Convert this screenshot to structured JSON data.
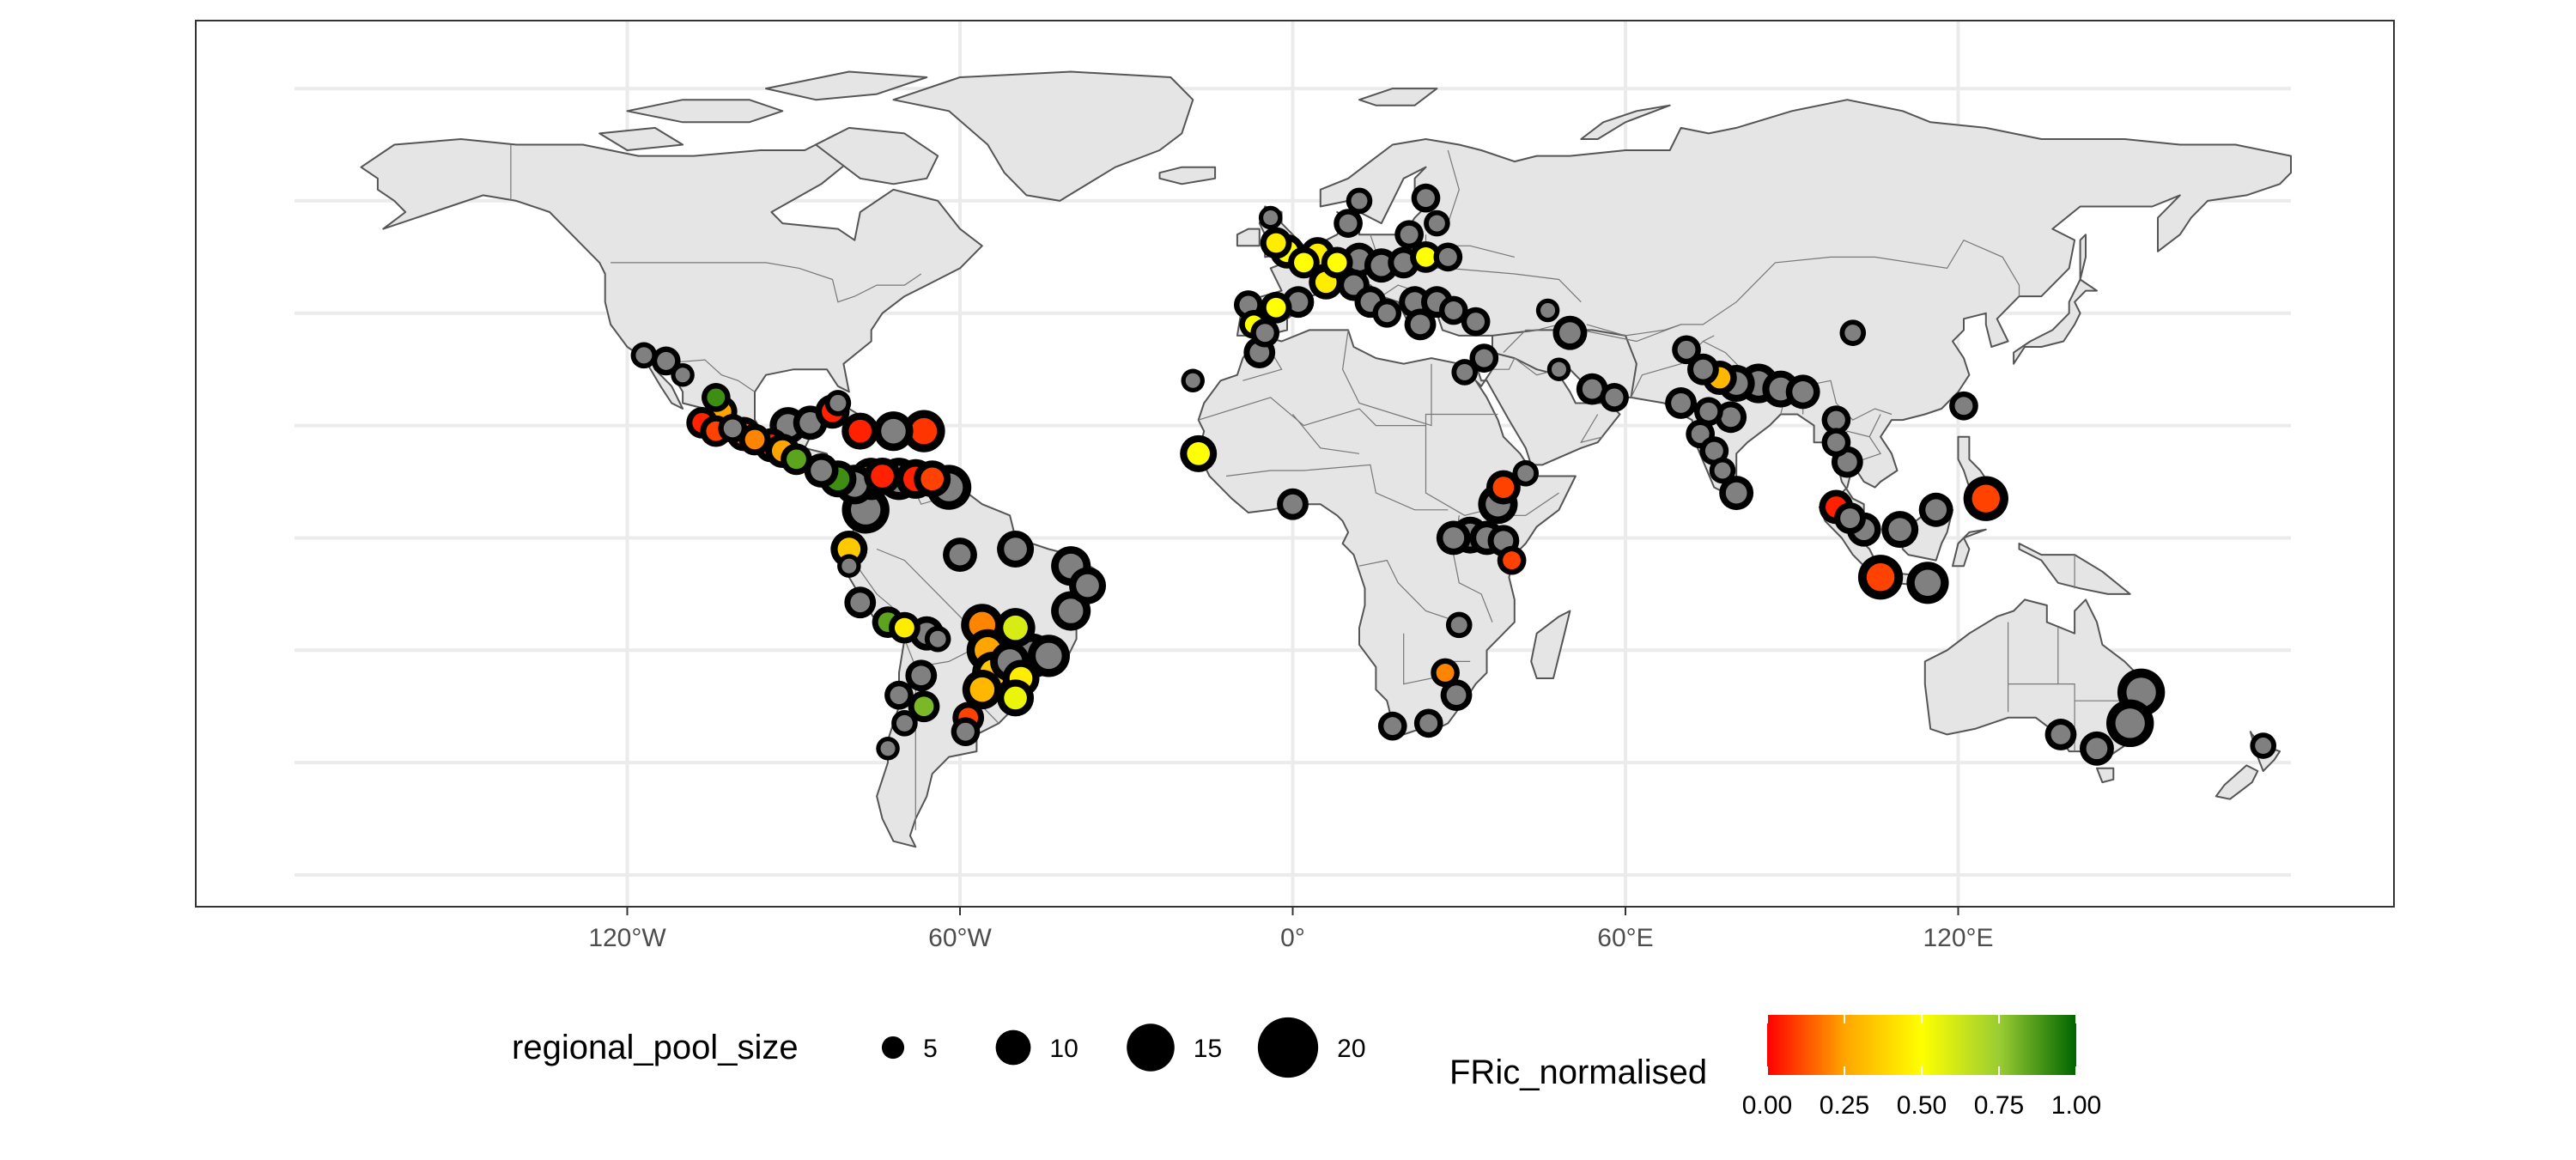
{
  "map": {
    "lon_range": [
      -180,
      180
    ],
    "lat_range": [
      -60,
      90
    ],
    "graticule_lons": [
      -120,
      -60,
      0,
      60,
      120
    ],
    "graticule_lats": [
      -60,
      -40,
      -20,
      0,
      20,
      40,
      60,
      80
    ],
    "x_tick_labels": [
      "120°W",
      "60°W",
      "0°",
      "60°E",
      "120°E"
    ],
    "grid": true,
    "land_color": "#e5e5e5",
    "border_color": "#555555",
    "gridline_color": "#ebebeb",
    "missing_value_color": "#808080",
    "outline_color": "#000000"
  },
  "legend": {
    "size": {
      "title": "regional_pool_size",
      "values": [
        5,
        10,
        15,
        20
      ],
      "labels": [
        "5",
        "10",
        "15",
        "20"
      ]
    },
    "color": {
      "title": "FRic_normalised",
      "stops": [
        "#ff0000",
        "#ffa500",
        "#ffff00",
        "#9acd32",
        "#006400"
      ],
      "labels": [
        "0.00",
        "0.25",
        "0.50",
        "0.75",
        "1.00"
      ],
      "range": [
        0,
        1
      ]
    },
    "placement": "bottom"
  },
  "sites": [
    {
      "lon": -117,
      "lat": 32.5,
      "size": 6,
      "fric": null
    },
    {
      "lon": -113,
      "lat": 31.5,
      "size": 7,
      "fric": null
    },
    {
      "lon": -110,
      "lat": 29,
      "size": 5,
      "fric": null
    },
    {
      "lon": -104,
      "lat": 25,
      "size": 7,
      "fric": 0.9
    },
    {
      "lon": -103,
      "lat": 22.5,
      "size": 8,
      "fric": 0.25
    },
    {
      "lon": -106.5,
      "lat": 20.5,
      "size": 8,
      "fric": 0.05
    },
    {
      "lon": -104,
      "lat": 19,
      "size": 8,
      "fric": 0.1
    },
    {
      "lon": -101,
      "lat": 19.5,
      "size": 7,
      "fric": null
    },
    {
      "lon": -99,
      "lat": 18.5,
      "size": 9,
      "fric": 0.15
    },
    {
      "lon": -97,
      "lat": 17.5,
      "size": 8,
      "fric": 0.2
    },
    {
      "lon": -94,
      "lat": 16.5,
      "size": 9,
      "fric": 0.05
    },
    {
      "lon": -92,
      "lat": 15.5,
      "size": 9,
      "fric": 0.25
    },
    {
      "lon": -89.5,
      "lat": 14,
      "size": 8,
      "fric": 0.85
    },
    {
      "lon": -91,
      "lat": 20,
      "size": 10,
      "fric": null
    },
    {
      "lon": -87,
      "lat": 20.5,
      "size": 9,
      "fric": null
    },
    {
      "lon": -83,
      "lat": 22.5,
      "size": 9,
      "fric": 0.05
    },
    {
      "lon": -82,
      "lat": 24,
      "size": 6,
      "fric": null
    },
    {
      "lon": -78,
      "lat": 19,
      "size": 10,
      "fric": 0.05
    },
    {
      "lon": -72,
      "lat": 19,
      "size": 11,
      "fric": null
    },
    {
      "lon": -66.5,
      "lat": 19,
      "size": 12,
      "fric": 0.08
    },
    {
      "lon": -85,
      "lat": 12,
      "size": 9,
      "fric": null
    },
    {
      "lon": -82,
      "lat": 10.5,
      "size": 10,
      "fric": 0.9
    },
    {
      "lon": -79,
      "lat": 9.5,
      "size": 11,
      "fric": null
    },
    {
      "lon": -76,
      "lat": 10.5,
      "size": 12,
      "fric": 0.3
    },
    {
      "lon": -74,
      "lat": 11,
      "size": 10,
      "fric": 0.05
    },
    {
      "lon": -71,
      "lat": 10.5,
      "size": 12,
      "fric": null
    },
    {
      "lon": -68,
      "lat": 10.5,
      "size": 11,
      "fric": 0.05
    },
    {
      "lon": -65,
      "lat": 10.5,
      "size": 10,
      "fric": 0.1
    },
    {
      "lon": -62,
      "lat": 9,
      "size": 13,
      "fric": null
    },
    {
      "lon": -77,
      "lat": 5,
      "size": 14,
      "fric": null
    },
    {
      "lon": -80,
      "lat": -2,
      "size": 10,
      "fric": 0.35
    },
    {
      "lon": -80,
      "lat": -5,
      "size": 5,
      "fric": null
    },
    {
      "lon": -78,
      "lat": -11.5,
      "size": 8,
      "fric": null
    },
    {
      "lon": -60,
      "lat": -3,
      "size": 9,
      "fric": null
    },
    {
      "lon": -50,
      "lat": -2,
      "size": 10,
      "fric": null
    },
    {
      "lon": -40,
      "lat": -5,
      "size": 11,
      "fric": null
    },
    {
      "lon": -37,
      "lat": -8.5,
      "size": 10,
      "fric": null
    },
    {
      "lon": -40,
      "lat": -13,
      "size": 11,
      "fric": null
    },
    {
      "lon": -73,
      "lat": -15,
      "size": 8,
      "fric": 0.85
    },
    {
      "lon": -70,
      "lat": -16,
      "size": 8,
      "fric": 0.45
    },
    {
      "lon": -66,
      "lat": -17,
      "size": 9,
      "fric": null
    },
    {
      "lon": -64,
      "lat": -18,
      "size": 6,
      "fric": null
    },
    {
      "lon": -56,
      "lat": -15.5,
      "size": 12,
      "fric": 0.2
    },
    {
      "lon": -50,
      "lat": -16,
      "size": 11,
      "fric": 0.6
    },
    {
      "lon": -55,
      "lat": -20,
      "size": 12,
      "fric": 0.25
    },
    {
      "lon": -51,
      "lat": -22,
      "size": 11,
      "fric": null
    },
    {
      "lon": -47,
      "lat": -21,
      "size": 13,
      "fric": null
    },
    {
      "lon": -44,
      "lat": -21,
      "size": 12,
      "fric": null
    },
    {
      "lon": -54,
      "lat": -24,
      "size": 12,
      "fric": 0.35
    },
    {
      "lon": -49,
      "lat": -25,
      "size": 10,
      "fric": 0.45
    },
    {
      "lon": -56,
      "lat": -27,
      "size": 11,
      "fric": 0.3
    },
    {
      "lon": -50,
      "lat": -28.5,
      "size": 10,
      "fric": 0.55
    },
    {
      "lon": -67,
      "lat": -24.5,
      "size": 8,
      "fric": null
    },
    {
      "lon": -71,
      "lat": -28,
      "size": 7,
      "fric": null
    },
    {
      "lon": -70,
      "lat": -33,
      "size": 6,
      "fric": null
    },
    {
      "lon": -66.5,
      "lat": -30,
      "size": 8,
      "fric": 0.8
    },
    {
      "lon": -58.5,
      "lat": -32,
      "size": 8,
      "fric": 0.1
    },
    {
      "lon": -59,
      "lat": -34.5,
      "size": 7,
      "fric": null
    },
    {
      "lon": -73,
      "lat": -37.5,
      "size": 5,
      "fric": null
    },
    {
      "lon": -18,
      "lat": 28,
      "size": 5,
      "fric": null
    },
    {
      "lon": -17,
      "lat": 15,
      "size": 10,
      "fric": 0.5
    },
    {
      "lon": 0,
      "lat": 6,
      "size": 8,
      "fric": null
    },
    {
      "lon": -4,
      "lat": 57,
      "size": 5,
      "fric": null
    },
    {
      "lon": -3,
      "lat": 52.5,
      "size": 8,
      "fric": 0.45
    },
    {
      "lon": -1,
      "lat": 51,
      "size": 9,
      "fric": 0.5
    },
    {
      "lon": 2,
      "lat": 49,
      "size": 8,
      "fric": 0.5
    },
    {
      "lon": 4.5,
      "lat": 50.5,
      "size": 9,
      "fric": 0.45
    },
    {
      "lon": 8,
      "lat": 49,
      "size": 8,
      "fric": 0.5
    },
    {
      "lon": 12,
      "lat": 49.5,
      "size": 9,
      "fric": null
    },
    {
      "lon": 16,
      "lat": 48.5,
      "size": 9,
      "fric": null
    },
    {
      "lon": 20,
      "lat": 49,
      "size": 8,
      "fric": null
    },
    {
      "lon": 24,
      "lat": 50,
      "size": 8,
      "fric": 0.5
    },
    {
      "lon": 28,
      "lat": 50,
      "size": 7,
      "fric": null
    },
    {
      "lon": 10,
      "lat": 56,
      "size": 7,
      "fric": null
    },
    {
      "lon": 12,
      "lat": 60,
      "size": 6,
      "fric": null
    },
    {
      "lon": 24,
      "lat": 60.5,
      "size": 7,
      "fric": null
    },
    {
      "lon": 26,
      "lat": 56,
      "size": 6,
      "fric": null
    },
    {
      "lon": 21,
      "lat": 54,
      "size": 7,
      "fric": null
    },
    {
      "lon": 6,
      "lat": 45.5,
      "size": 9,
      "fric": 0.45
    },
    {
      "lon": 11,
      "lat": 45,
      "size": 8,
      "fric": null
    },
    {
      "lon": 14,
      "lat": 42,
      "size": 8,
      "fric": null
    },
    {
      "lon": 17,
      "lat": 40,
      "size": 7,
      "fric": null
    },
    {
      "lon": 1,
      "lat": 42,
      "size": 8,
      "fric": null
    },
    {
      "lon": -3,
      "lat": 41,
      "size": 8,
      "fric": 0.5
    },
    {
      "lon": -8,
      "lat": 41.5,
      "size": 7,
      "fric": null
    },
    {
      "lon": -7,
      "lat": 38,
      "size": 7,
      "fric": 0.5
    },
    {
      "lon": -5,
      "lat": 36.5,
      "size": 7,
      "fric": null
    },
    {
      "lon": -6,
      "lat": 33,
      "size": 8,
      "fric": null
    },
    {
      "lon": 22,
      "lat": 42,
      "size": 8,
      "fric": null
    },
    {
      "lon": 26,
      "lat": 42,
      "size": 8,
      "fric": null
    },
    {
      "lon": 23,
      "lat": 38,
      "size": 8,
      "fric": null
    },
    {
      "lon": 29,
      "lat": 40.5,
      "size": 7,
      "fric": null
    },
    {
      "lon": 33,
      "lat": 38.5,
      "size": 7,
      "fric": null
    },
    {
      "lon": 34.5,
      "lat": 32,
      "size": 7,
      "fric": null
    },
    {
      "lon": 31,
      "lat": 29.5,
      "size": 6,
      "fric": null
    },
    {
      "lon": 46,
      "lat": 40.5,
      "size": 5,
      "fric": null
    },
    {
      "lon": 50,
      "lat": 36.5,
      "size": 9,
      "fric": null
    },
    {
      "lon": 48,
      "lat": 30,
      "size": 5,
      "fric": null
    },
    {
      "lon": 54,
      "lat": 26.5,
      "size": 8,
      "fric": null
    },
    {
      "lon": 58,
      "lat": 25,
      "size": 7,
      "fric": null
    },
    {
      "lon": 38,
      "lat": 9,
      "size": 9,
      "fric": 0.1
    },
    {
      "lon": 37,
      "lat": 6,
      "size": 11,
      "fric": null
    },
    {
      "lon": 42,
      "lat": 11.5,
      "size": 6,
      "fric": null
    },
    {
      "lon": 29,
      "lat": 0,
      "size": 9,
      "fric": null
    },
    {
      "lon": 32,
      "lat": 0.5,
      "size": 10,
      "fric": null
    },
    {
      "lon": 35,
      "lat": 0,
      "size": 9,
      "fric": null
    },
    {
      "lon": 38,
      "lat": -0.5,
      "size": 8,
      "fric": null
    },
    {
      "lon": 39.5,
      "lat": -4,
      "size": 7,
      "fric": 0.1
    },
    {
      "lon": 30,
      "lat": -15.5,
      "size": 6,
      "fric": null
    },
    {
      "lon": 27.5,
      "lat": -24,
      "size": 7,
      "fric": 0.2
    },
    {
      "lon": 29.5,
      "lat": -28,
      "size": 8,
      "fric": null
    },
    {
      "lon": 24.5,
      "lat": -33,
      "size": 7,
      "fric": null
    },
    {
      "lon": 18,
      "lat": -33.5,
      "size": 7,
      "fric": null
    },
    {
      "lon": 101,
      "lat": 36.5,
      "size": 6,
      "fric": null
    },
    {
      "lon": 71,
      "lat": 33.5,
      "size": 7,
      "fric": null
    },
    {
      "lon": 74,
      "lat": 30,
      "size": 8,
      "fric": null
    },
    {
      "lon": 77,
      "lat": 28.5,
      "size": 9,
      "fric": 0.3
    },
    {
      "lon": 80,
      "lat": 27.5,
      "size": 10,
      "fric": null
    },
    {
      "lon": 84,
      "lat": 27.5,
      "size": 11,
      "fric": null
    },
    {
      "lon": 88,
      "lat": 26.5,
      "size": 10,
      "fric": null
    },
    {
      "lon": 92,
      "lat": 26,
      "size": 9,
      "fric": null
    },
    {
      "lon": 70,
      "lat": 24,
      "size": 8,
      "fric": null
    },
    {
      "lon": 75,
      "lat": 22.5,
      "size": 7,
      "fric": null
    },
    {
      "lon": 79,
      "lat": 21.5,
      "size": 8,
      "fric": null
    },
    {
      "lon": 73.5,
      "lat": 18.5,
      "size": 7,
      "fric": null
    },
    {
      "lon": 76,
      "lat": 15.5,
      "size": 7,
      "fric": null
    },
    {
      "lon": 77.5,
      "lat": 12,
      "size": 6,
      "fric": null
    },
    {
      "lon": 80,
      "lat": 8,
      "size": 9,
      "fric": null
    },
    {
      "lon": 98,
      "lat": 21,
      "size": 7,
      "fric": null
    },
    {
      "lon": 98,
      "lat": 17,
      "size": 7,
      "fric": null
    },
    {
      "lon": 100,
      "lat": 13.5,
      "size": 8,
      "fric": null
    },
    {
      "lon": 121,
      "lat": 23.5,
      "size": 7,
      "fric": null
    },
    {
      "lon": 98,
      "lat": 5.5,
      "size": 9,
      "fric": 0.05
    },
    {
      "lon": 100.5,
      "lat": 3.5,
      "size": 8,
      "fric": null
    },
    {
      "lon": 103,
      "lat": 1.5,
      "size": 9,
      "fric": null
    },
    {
      "lon": 109.5,
      "lat": 1.5,
      "size": 10,
      "fric": null
    },
    {
      "lon": 116,
      "lat": 5,
      "size": 9,
      "fric": null
    },
    {
      "lon": 125,
      "lat": 7,
      "size": 13,
      "fric": 0.1
    },
    {
      "lon": 106,
      "lat": -7,
      "size": 13,
      "fric": 0.1
    },
    {
      "lon": 114.5,
      "lat": -8,
      "size": 12,
      "fric": null
    },
    {
      "lon": 153,
      "lat": -27.5,
      "size": 14,
      "fric": null
    },
    {
      "lon": 151,
      "lat": -33,
      "size": 14,
      "fric": null
    },
    {
      "lon": 145,
      "lat": -37.5,
      "size": 9,
      "fric": null
    },
    {
      "lon": 138.5,
      "lat": -35,
      "size": 8,
      "fric": null
    },
    {
      "lon": 175,
      "lat": -37,
      "size": 6,
      "fric": null
    }
  ]
}
